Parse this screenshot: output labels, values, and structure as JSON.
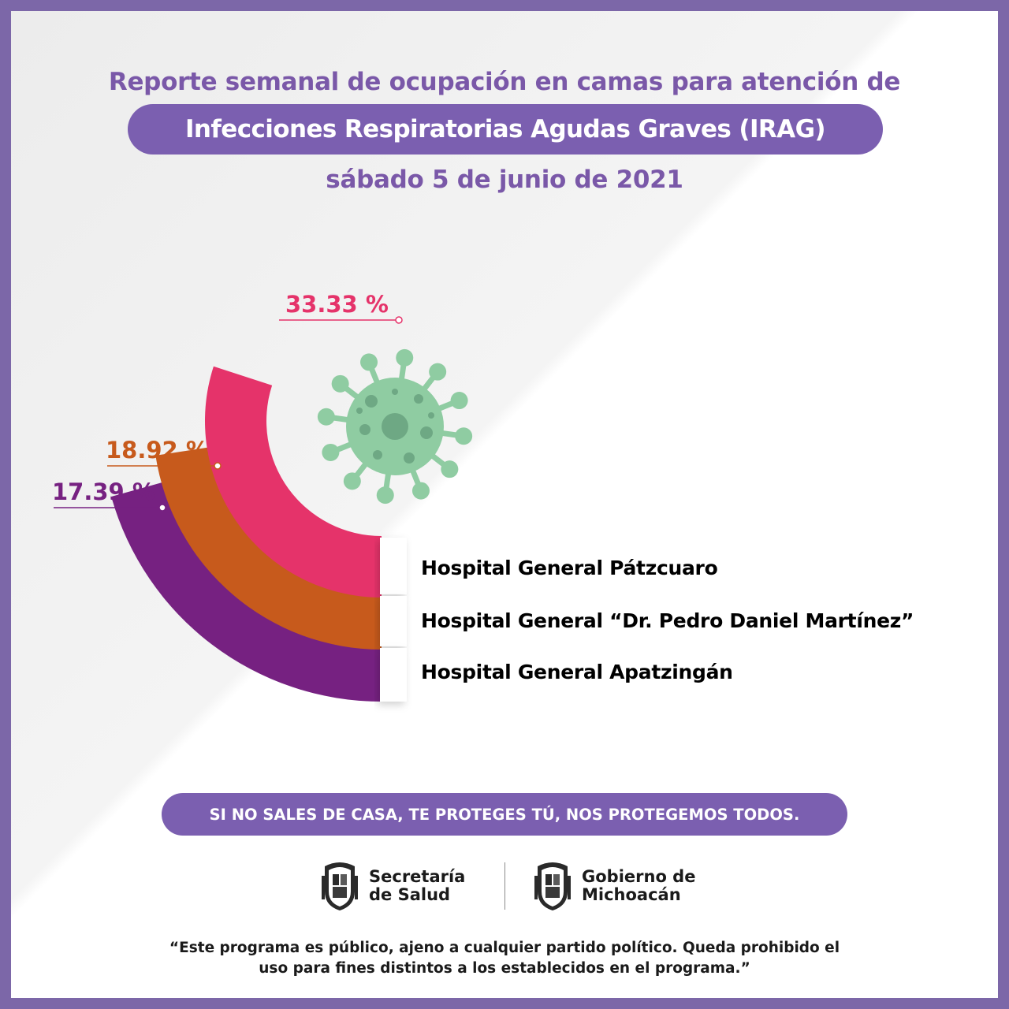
{
  "header": {
    "title_line1": "Reporte semanal de ocupación en camas para atención de",
    "title_pill": "Infecciones Respiratorias Agudas Graves (IRAG)",
    "date": "sábado 5 de junio de 2021"
  },
  "chart_data": {
    "type": "pie",
    "series": [
      {
        "name": "Hospital General Pátzcuaro",
        "value": 33.33,
        "label": "33.33 %",
        "color": "#e5336a"
      },
      {
        "name": "Hospital General “Dr. Pedro Daniel Martínez”",
        "value": 18.92,
        "label": "18.92 %",
        "color": "#c75a1c"
      },
      {
        "name": "Hospital General Apatzingán",
        "value": 17.39,
        "label": "17.39 %",
        "color": "#762181"
      }
    ],
    "unit": "%",
    "decorations": [
      "virus-icon"
    ]
  },
  "footer": {
    "slogan": "SI NO SALES DE CASA, TE PROTEGES TÚ, NOS PROTEGEMOS TODOS.",
    "logos": [
      {
        "line1": "Secretaría",
        "line2": "de Salud",
        "icon": "coat-of-arms-icon"
      },
      {
        "line1": "Gobierno de",
        "line2": "Michoacán",
        "icon": "coat-of-arms-icon"
      }
    ],
    "disclaimer_line1": "“Este programa es público, ajeno a cualquier partido político. Queda prohibido el",
    "disclaimer_line2": "uso para fines distintos a los establecidos en el programa.”"
  },
  "colors": {
    "frame": "#7c67a8",
    "purple_title": "#7a58a8",
    "pill": "#7b5fb0",
    "virus": "#8fcca2",
    "virus_dark": "#6ea884"
  }
}
